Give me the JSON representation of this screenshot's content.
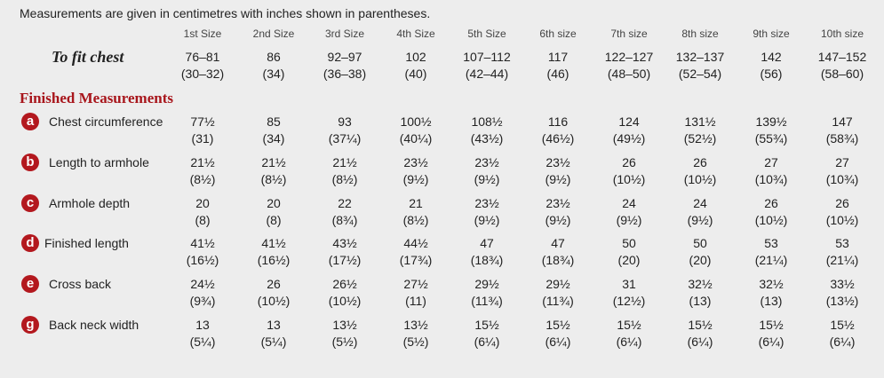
{
  "note": "Measurements are given in centimetres with inches shown in parentheses.",
  "sizes": [
    "1st Size",
    "2nd Size",
    "3rd Size",
    "4th Size",
    "5th Size",
    "6th size",
    "7th size",
    "8th size",
    "9th size",
    "10th size"
  ],
  "fit": {
    "label": "To fit chest",
    "cells": [
      [
        "76–81",
        "(30–32)"
      ],
      [
        "86",
        "(34)"
      ],
      [
        "92–97",
        "(36–38)"
      ],
      [
        "102",
        "(40)"
      ],
      [
        "107–112",
        "(42–44)"
      ],
      [
        "117",
        "(46)"
      ],
      [
        "122–127",
        "(48–50)"
      ],
      [
        "132–137",
        "(52–54)"
      ],
      [
        "142",
        "(56)"
      ],
      [
        "147–152",
        "(58–60)"
      ]
    ]
  },
  "section_title": "Finished Measurements",
  "rows": [
    {
      "badge": "a",
      "label": "Chest circumference",
      "cells": [
        [
          "77½",
          "(31)"
        ],
        [
          "85",
          "(34)"
        ],
        [
          "93",
          "(37¼)"
        ],
        [
          "100½",
          "(40¼)"
        ],
        [
          "108½",
          "(43½)"
        ],
        [
          "116",
          "(46½)"
        ],
        [
          "124",
          "(49½)"
        ],
        [
          "131½",
          "(52½)"
        ],
        [
          "139½",
          "(55¾)"
        ],
        [
          "147",
          "(58¾)"
        ]
      ]
    },
    {
      "badge": "b",
      "label": "Length to armhole",
      "cells": [
        [
          "21½",
          "(8½)"
        ],
        [
          "21½",
          "(8½)"
        ],
        [
          "21½",
          "(8½)"
        ],
        [
          "23½",
          "(9½)"
        ],
        [
          "23½",
          "(9½)"
        ],
        [
          "23½",
          "(9½)"
        ],
        [
          "26",
          "(10½)"
        ],
        [
          "26",
          "(10½)"
        ],
        [
          "27",
          "(10¾)"
        ],
        [
          "27",
          "(10¾)"
        ]
      ]
    },
    {
      "badge": "c",
      "label": "Armhole depth",
      "cells": [
        [
          "20",
          "(8)"
        ],
        [
          "20",
          "(8)"
        ],
        [
          "22",
          "(8¾)"
        ],
        [
          "21",
          "(8½)"
        ],
        [
          "23½",
          "(9½)"
        ],
        [
          "23½",
          "(9½)"
        ],
        [
          "24",
          "(9½)"
        ],
        [
          "24",
          "(9½)"
        ],
        [
          "26",
          "(10½)"
        ],
        [
          "26",
          "(10½)"
        ]
      ]
    },
    {
      "badge": "d",
      "label": "Finished length",
      "cells": [
        [
          "41½",
          "(16½)"
        ],
        [
          "41½",
          "(16½)"
        ],
        [
          "43½",
          "(17½)"
        ],
        [
          "44½",
          "(17¾)"
        ],
        [
          "47",
          "(18¾)"
        ],
        [
          "47",
          "(18¾)"
        ],
        [
          "50",
          "(20)"
        ],
        [
          "50",
          "(20)"
        ],
        [
          "53",
          "(21¼)"
        ],
        [
          "53",
          "(21¼)"
        ]
      ]
    },
    {
      "badge": "e",
      "label": "Cross back",
      "cells": [
        [
          "24½",
          "(9¾)"
        ],
        [
          "26",
          "(10½)"
        ],
        [
          "26½",
          "(10½)"
        ],
        [
          "27½",
          "(11)"
        ],
        [
          "29½",
          "(11¾)"
        ],
        [
          "29½",
          "(11¾)"
        ],
        [
          "31",
          "(12½)"
        ],
        [
          "32½",
          "(13)"
        ],
        [
          "32½",
          "(13)"
        ],
        [
          "33½",
          "(13½)"
        ]
      ]
    },
    {
      "badge": "g",
      "label": "Back neck width",
      "cells": [
        [
          "13",
          "(5¼)"
        ],
        [
          "13",
          "(5¼)"
        ],
        [
          "13½",
          "(5½)"
        ],
        [
          "13½",
          "(5½)"
        ],
        [
          "15½",
          "(6¼)"
        ],
        [
          "15½",
          "(6¼)"
        ],
        [
          "15½",
          "(6¼)"
        ],
        [
          "15½",
          "(6¼)"
        ],
        [
          "15½",
          "(6¼)"
        ],
        [
          "15½",
          "(6¼)"
        ]
      ]
    }
  ]
}
